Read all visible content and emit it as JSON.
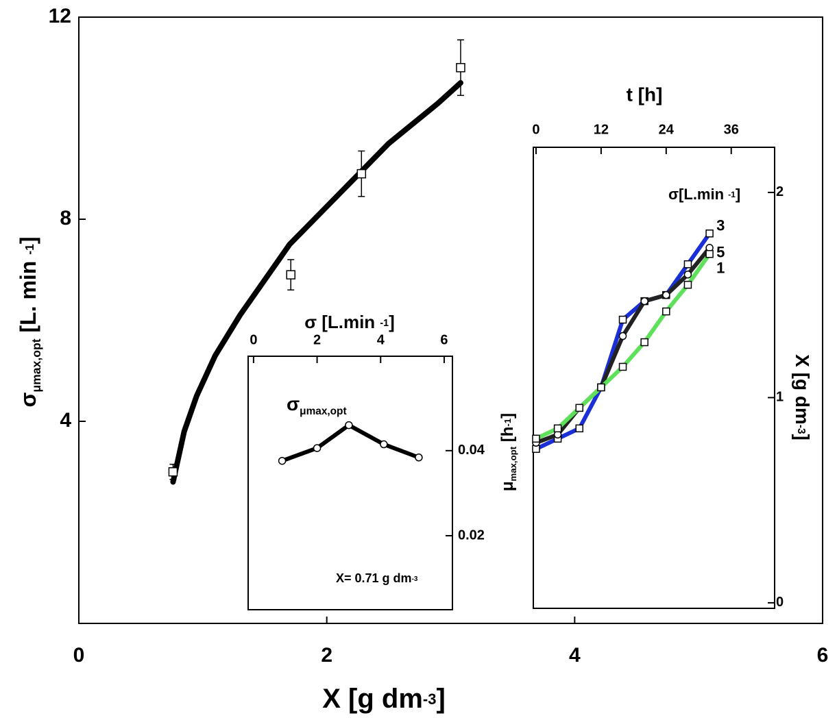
{
  "chart_data": [
    {
      "type": "line",
      "xlim": [
        0,
        6
      ],
      "ylim": [
        0,
        12
      ],
      "xticks": [
        0,
        2,
        4,
        6
      ],
      "yticks": [
        4,
        8,
        12
      ],
      "x_label": [
        "X ",
        "[g dm",
        "-3",
        "]"
      ],
      "y_label": [
        "σ",
        "μmax,opt",
        " [L. min ",
        "-1",
        "]"
      ],
      "x": [
        0.76,
        1.71,
        2.28,
        3.08
      ],
      "series": [
        {
          "color": "#000000",
          "values": [
            3.0,
            6.9,
            8.9,
            11.0
          ],
          "errors": [
            0.15,
            0.3,
            0.45,
            0.55
          ]
        }
      ],
      "fit": {
        "color": "#000000",
        "x": [
          0.76,
          0.85,
          0.95,
          1.1,
          1.3,
          1.5,
          1.7,
          1.9,
          2.1,
          2.3,
          2.5,
          2.7,
          2.9,
          3.08
        ],
        "values": [
          2.8,
          3.8,
          4.5,
          5.3,
          6.1,
          6.8,
          7.5,
          8.0,
          8.5,
          9.0,
          9.5,
          9.9,
          10.3,
          10.7
        ]
      }
    },
    {
      "type": "line",
      "xlim": [
        -0.17,
        6.26
      ],
      "ylim": [
        0.0026,
        0.0622
      ],
      "xticks": [
        0,
        2,
        4,
        6
      ],
      "yticks": [
        0.02,
        0.04
      ],
      "x_label": [
        "σ  [L.min ",
        "-1",
        "]"
      ],
      "y_label": [
        "μ",
        "max,opt",
        " [h",
        "-1",
        "]"
      ],
      "inner_label": [
        "σ",
        "μmax,opt"
      ],
      "annotation": [
        "X= 0.71 g dm",
        "-3"
      ],
      "x": [
        0.9,
        2.0,
        3.0,
        4.1,
        5.2
      ],
      "series": [
        {
          "color": "#000000",
          "values": [
            0.0376,
            0.0406,
            0.046,
            0.0415,
            0.0384
          ]
        }
      ]
    },
    {
      "type": "line",
      "xlim": [
        -0.5,
        44
      ],
      "ylim": [
        -0.027,
        2.22
      ],
      "xticks": [
        0,
        12,
        24,
        36
      ],
      "yticks": [
        0,
        1,
        2
      ],
      "x_label": "t [h]",
      "y_label": [
        "X ",
        "[g dm",
        "-3",
        "]"
      ],
      "legend_title": [
        "σ[L.min ",
        "-1",
        "]"
      ],
      "x": [
        0,
        4,
        8,
        12,
        16,
        20,
        24,
        28,
        32
      ],
      "series": [
        {
          "name": "3",
          "color": "#1a2fd6",
          "values": [
            0.75,
            0.8,
            0.85,
            1.05,
            1.38,
            1.47,
            1.5,
            1.65,
            1.8
          ]
        },
        {
          "name": "5",
          "color": "#222222",
          "values": [
            0.78,
            0.82,
            0.95,
            1.05,
            1.3,
            1.47,
            1.5,
            1.6,
            1.73
          ]
        },
        {
          "name": "1",
          "color": "#5fe05a",
          "values": [
            0.8,
            0.85,
            0.95,
            1.05,
            1.15,
            1.27,
            1.42,
            1.55,
            1.7
          ]
        }
      ]
    }
  ]
}
